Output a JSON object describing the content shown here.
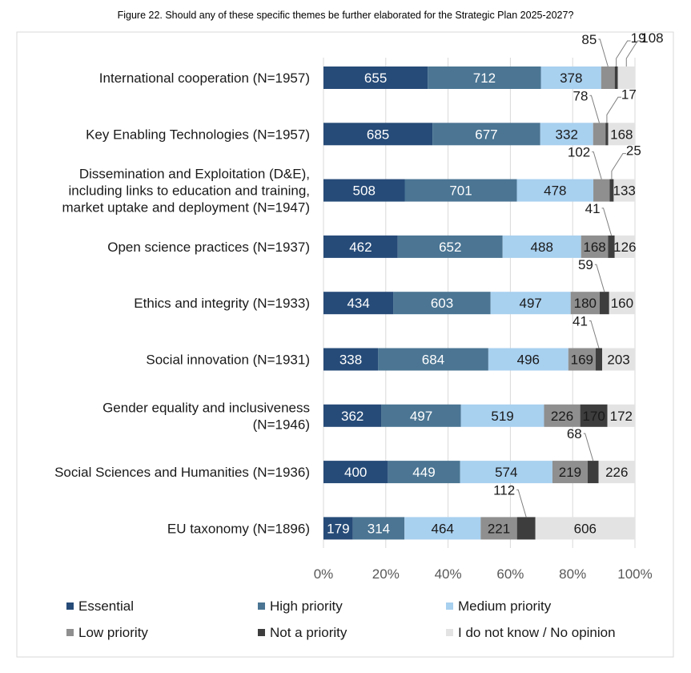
{
  "chart_data": {
    "type": "bar",
    "orientation": "horizontal",
    "stacked": "percent",
    "title": "Figure 22. Should any of these specific themes be further elaborated for the Strategic Plan 2025-2027?",
    "categories": [
      "International cooperation (N=1957)",
      "Key Enabling Technologies (N=1957)",
      "Dissemination and Exploitation (D&E),\nincluding links to education and training,\nmarket uptake and deployment (N=1947)",
      "Open science practices (N=1937)",
      "Ethics and integrity (N=1933)",
      "Social innovation (N=1931)",
      "Gender equality and inclusiveness\n(N=1946)",
      "Social Sciences and Humanities (N=1936)",
      "EU taxonomy (N=1896)"
    ],
    "series": [
      {
        "name": "Essential",
        "color": "#264b78",
        "label_color": "#ffffff",
        "values": [
          655,
          685,
          508,
          462,
          434,
          338,
          362,
          400,
          179
        ]
      },
      {
        "name": "High priority",
        "color": "#4b7593",
        "label_color": "#ffffff",
        "values": [
          712,
          677,
          701,
          652,
          603,
          684,
          497,
          449,
          314
        ]
      },
      {
        "name": "Medium priority",
        "color": "#a8d0ef",
        "label_color": "#1a1a1a",
        "values": [
          378,
          332,
          478,
          488,
          497,
          496,
          519,
          574,
          464
        ]
      },
      {
        "name": "Low priority",
        "color": "#8f8f8f",
        "label_color": "#1a1a1a",
        "values": [
          85,
          78,
          102,
          168,
          180,
          169,
          226,
          219,
          221
        ]
      },
      {
        "name": "Not a priority",
        "color": "#3d3d3d",
        "label_color": "#1a1a1a",
        "values": [
          19,
          17,
          25,
          41,
          59,
          41,
          170,
          68,
          112
        ]
      },
      {
        "name": "I do not know / No opinion",
        "color": "#e3e3e3",
        "label_color": "#1a1a1a",
        "values": [
          108,
          168,
          133,
          126,
          160,
          203,
          172,
          226,
          606
        ]
      }
    ],
    "xlim": [
      0,
      100
    ],
    "xticks": [
      "0%",
      "20%",
      "40%",
      "60%",
      "80%",
      "100%"
    ],
    "grid": true,
    "legend": "bottom"
  }
}
